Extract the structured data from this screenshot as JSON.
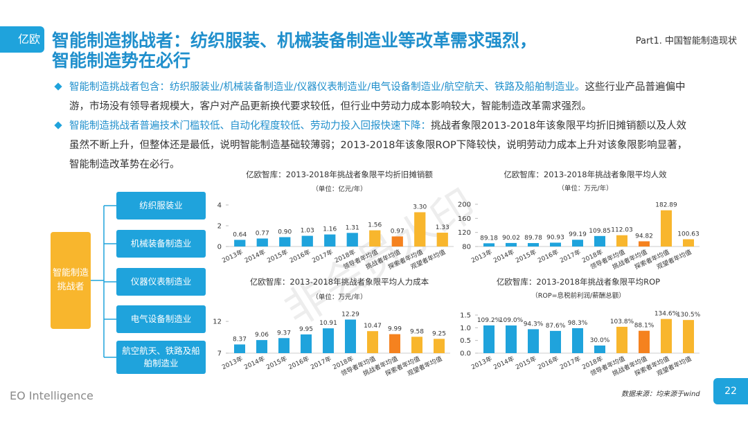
{
  "header": {
    "logo": "亿欧",
    "title_lines": [
      "智能制造挑战者：纺织服装、机械装备制造业等改革需求强烈，",
      "智能制造势在必行"
    ],
    "section": "Part1. 中国智能制造现状"
  },
  "bullets": [
    {
      "lead": "智能制造挑战者包含：纺织服装业/机械装备制造业/仪器仪表制造业/电气设备制造业/航空航天、铁路及船舶制造业。",
      "text": "这些行业产品普遍偏中游，市场没有领导者规模大，客户对产品更新换代要求较低，但行业中劳动力成本影响较大，智能制造改革需求强烈。"
    },
    {
      "lead": "智能制造挑战者普遍技术门槛较低、自动化程度较低、劳动力投入回报快速下降：",
      "text": "挑战者象限2013-2018年该象限平均折旧摊销额以及人效虽然不断上升，但整体还是最低，说明智能制造基础较薄弱；2013-2018年该象限ROP下降较快，说明劳动力成本上升对该象限影响显著，智能制造改革势在必行。"
    }
  ],
  "diagram": {
    "root": "智能制造挑战者",
    "children": [
      "纺织服装业",
      "机械装备制造业",
      "仪器仪表制造业",
      "电气设备制造业",
      "航空航天、铁路及船舶制造业"
    ]
  },
  "watermark": "非会员水印",
  "chart_data": [
    {
      "type": "bar",
      "title": "亿欧智库：2013-2018年挑战者象限平均折旧摊销额",
      "subtitle": "（单位：亿元/年）",
      "categories": [
        "2013年",
        "2014年",
        "2015年",
        "2016年",
        "2017年",
        "2018年",
        "领导者年均值",
        "挑战者年均值",
        "探索者年均值",
        "观望者年均值"
      ],
      "values": [
        0.64,
        0.77,
        0.9,
        1.03,
        1.16,
        1.31,
        1.56,
        0.97,
        3.3,
        1.33
      ],
      "value_labels": [
        "0.64",
        "0.77",
        "0.90",
        "1.03",
        "1.16",
        "1.31",
        "1.56",
        "0.97",
        "3.30",
        "1.33"
      ],
      "colors": [
        "#1fa3dc",
        "#1fa3dc",
        "#1fa3dc",
        "#1fa3dc",
        "#1fa3dc",
        "#1fa3dc",
        "#f8b62d",
        "#f5821f",
        "#f8b62d",
        "#f8b62d"
      ],
      "ylim": [
        0,
        4
      ],
      "yticks": [
        0,
        2,
        4
      ]
    },
    {
      "type": "bar",
      "title": "亿欧智库：2013-2018年挑战者象限平均人效",
      "subtitle": "（单位：万元/年）",
      "categories": [
        "2013年",
        "2014年",
        "2015年",
        "2016年",
        "2017年",
        "2018年",
        "领导者年均值",
        "挑战者年均值",
        "探索者年均值",
        "观望者年均值"
      ],
      "values": [
        89.18,
        90.02,
        89.78,
        90.93,
        99.19,
        109.85,
        112.03,
        94.82,
        182.89,
        100.63
      ],
      "colors": [
        "#1fa3dc",
        "#1fa3dc",
        "#1fa3dc",
        "#1fa3dc",
        "#1fa3dc",
        "#1fa3dc",
        "#f8b62d",
        "#f5821f",
        "#f8b62d",
        "#f8b62d"
      ],
      "ylim": [
        80,
        200
      ],
      "yticks": [
        80,
        120,
        160,
        200
      ]
    },
    {
      "type": "bar",
      "title": "亿欧智库：2013-2018年挑战者象限平均人力成本",
      "subtitle": "（单位：万元/年）",
      "categories": [
        "2013年",
        "2014年",
        "2015年",
        "2016年",
        "2017年",
        "2018年",
        "领导者年均值",
        "挑战者年均值",
        "探索者年均值",
        "观望者年均值"
      ],
      "values": [
        8.37,
        9.06,
        9.37,
        9.95,
        10.91,
        12.29,
        10.47,
        9.99,
        9.58,
        9.25
      ],
      "colors": [
        "#1fa3dc",
        "#1fa3dc",
        "#1fa3dc",
        "#1fa3dc",
        "#1fa3dc",
        "#1fa3dc",
        "#f8b62d",
        "#f5821f",
        "#f8b62d",
        "#f8b62d"
      ],
      "ylim": [
        7,
        13
      ],
      "yticks": [
        7,
        12
      ]
    },
    {
      "type": "bar",
      "title": "亿欧智库：2013-2018年挑战者象限平均ROP",
      "subtitle": "（ROP=息税前利润/薪酬总额）",
      "categories": [
        "2013年",
        "2014年",
        "2015年",
        "2016年",
        "2017年",
        "2018年",
        "领导者年均值",
        "挑战者年均值",
        "探索者年均值",
        "观望者年均值"
      ],
      "values": [
        1.092,
        1.09,
        0.943,
        0.876,
        0.983,
        0.3,
        1.038,
        0.881,
        1.346,
        1.305
      ],
      "value_labels": [
        "109.2%",
        "109.0%",
        "94.3%",
        "87.6%",
        "98.3%",
        "30.0%",
        "103.8%",
        "88.1%",
        "134.6%",
        "130.5%"
      ],
      "colors": [
        "#1fa3dc",
        "#1fa3dc",
        "#1fa3dc",
        "#1fa3dc",
        "#1fa3dc",
        "#1fa3dc",
        "#f8b62d",
        "#f5821f",
        "#f8b62d",
        "#f8b62d"
      ],
      "ylim": [
        0,
        1.5
      ],
      "yticks": [
        {
          "value": 0,
          "label": "0.0"
        },
        0.5,
        {
          "value": 1,
          "label": "1.0"
        },
        1.5
      ]
    }
  ],
  "footer": {
    "source": "数据来源：均来源于wind",
    "brand": "EO Intelligence",
    "page": "22"
  }
}
